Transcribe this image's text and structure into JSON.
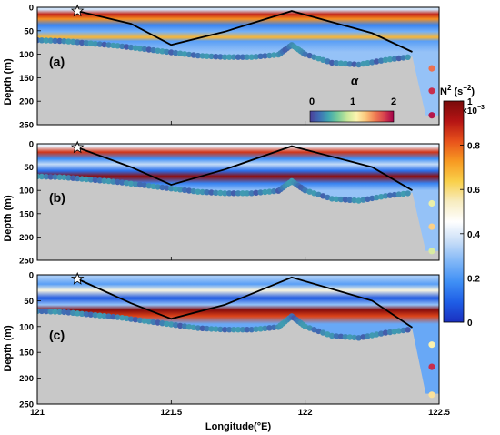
{
  "colors": {
    "seabed": "#c8c8c8",
    "water_cmap": [
      "#1a2fbf",
      "#1f5ee6",
      "#3f8ff5",
      "#7fb6f7",
      "#c7ddf7",
      "#ffffff",
      "#f7ecc0",
      "#f9d04a",
      "#f79a22",
      "#e8521b",
      "#b51414",
      "#7a0b0b"
    ],
    "alpha_cmap": [
      "#4b3f99",
      "#3f6fb5",
      "#40a7b0",
      "#79cc9a",
      "#c9e89a",
      "#fcf4b0",
      "#fbc57a",
      "#f07d52",
      "#d6404e",
      "#a2004a"
    ]
  },
  "colorbar": {
    "title_base": "N",
    "title_sup": "2",
    "title_unit_open": " (s",
    "title_unit_sup": "−2",
    "title_unit_close": ")",
    "scale_base": "×10",
    "scale_exp": "−3",
    "ticks": [
      "0",
      "0.2",
      "0.4",
      "0.6",
      "0.8",
      "1"
    ]
  },
  "alpha_bar": {
    "symbol": "α",
    "ticks": [
      "0",
      "1",
      "2"
    ]
  },
  "xaxis": {
    "label": "Longitude(°E)",
    "ticks": [
      "121",
      "121.5",
      "122",
      "122.5"
    ]
  },
  "yaxis": {
    "label": "Depth (m)",
    "ticks": [
      "0",
      "50",
      "100",
      "150",
      "200",
      "250"
    ]
  },
  "chart_data": [
    {
      "type": "heatmap",
      "panel_label": "(a)",
      "xlim": [
        121,
        122.5
      ],
      "ylim": [
        250,
        0
      ],
      "clim": [
        0,
        1
      ],
      "layers": [
        {
          "depth": 5,
          "value": 0.38
        },
        {
          "depth": 15,
          "value": 0.88
        },
        {
          "depth": 25,
          "value": 0.74
        },
        {
          "depth": 38,
          "value": 0.16
        },
        {
          "depth": 52,
          "value": 0.26
        },
        {
          "depth": 64,
          "value": 0.68
        },
        {
          "depth": 72,
          "value": 0.22
        },
        {
          "depth": 95,
          "value": 0.3
        }
      ],
      "seabed": {
        "x": [
          121,
          121.1,
          121.2,
          121.3,
          121.4,
          121.5,
          121.6,
          121.7,
          121.8,
          121.9,
          121.95,
          122.0,
          122.1,
          122.2,
          122.3,
          122.4,
          122.45
        ],
        "y": [
          70,
          72,
          77,
          82,
          89,
          96,
          103,
          106,
          106,
          101,
          80,
          100,
          118,
          122,
          112,
          105,
          230
        ]
      },
      "track": {
        "x": [
          121.15,
          121.35,
          121.5,
          121.7,
          121.95,
          122.25,
          122.4
        ],
        "y": [
          8,
          35,
          80,
          52,
          8,
          55,
          95
        ]
      },
      "station": {
        "lon": 121.15,
        "depth": 8
      },
      "edge_alpha": [
        {
          "depth": 130,
          "alpha": 2
        },
        {
          "depth": 178,
          "alpha": 2.3
        },
        {
          "depth": 230,
          "alpha": 2.4
        }
      ]
    },
    {
      "type": "heatmap",
      "panel_label": "(b)",
      "xlim": [
        121,
        122.5
      ],
      "ylim": [
        250,
        0
      ],
      "clim": [
        0,
        1
      ],
      "layers": [
        {
          "depth": 5,
          "value": 0.42
        },
        {
          "depth": 18,
          "value": 0.86
        },
        {
          "depth": 32,
          "value": 0.18
        },
        {
          "depth": 44,
          "value": 0.36
        },
        {
          "depth": 58,
          "value": 0.12
        },
        {
          "depth": 70,
          "value": 0.97
        },
        {
          "depth": 85,
          "value": 0.16
        },
        {
          "depth": 100,
          "value": 0.3
        }
      ],
      "seabed": {
        "x": [
          121,
          121.1,
          121.2,
          121.3,
          121.4,
          121.5,
          121.6,
          121.7,
          121.8,
          121.9,
          121.95,
          122.0,
          122.1,
          122.2,
          122.3,
          122.4,
          122.45
        ],
        "y": [
          70,
          72,
          77,
          82,
          89,
          96,
          103,
          106,
          106,
          101,
          80,
          100,
          118,
          122,
          112,
          105,
          230
        ]
      },
      "track": {
        "x": [
          121.15,
          121.35,
          121.5,
          121.7,
          121.95,
          122.25,
          122.4
        ],
        "y": [
          8,
          50,
          88,
          55,
          5,
          50,
          100
        ]
      },
      "station": {
        "lon": 121.15,
        "depth": 8
      },
      "edge_alpha": [
        {
          "depth": 128,
          "alpha": 1.3
        },
        {
          "depth": 178,
          "alpha": 1.6
        },
        {
          "depth": 230,
          "alpha": 1.2
        }
      ]
    },
    {
      "type": "heatmap",
      "panel_label": "(c)",
      "xlim": [
        121,
        122.5
      ],
      "ylim": [
        250,
        0
      ],
      "clim": [
        0,
        1
      ],
      "layers": [
        {
          "depth": 5,
          "value": 0.32
        },
        {
          "depth": 18,
          "value": 0.22
        },
        {
          "depth": 30,
          "value": 0.5
        },
        {
          "depth": 45,
          "value": 0.08
        },
        {
          "depth": 58,
          "value": 0.3
        },
        {
          "depth": 68,
          "value": 0.98
        },
        {
          "depth": 80,
          "value": 0.84
        },
        {
          "depth": 95,
          "value": 0.24
        }
      ],
      "seabed": {
        "x": [
          121,
          121.1,
          121.2,
          121.3,
          121.4,
          121.5,
          121.6,
          121.7,
          121.8,
          121.9,
          121.95,
          122.0,
          122.1,
          122.2,
          122.3,
          122.4,
          122.45
        ],
        "y": [
          70,
          72,
          77,
          82,
          89,
          96,
          103,
          106,
          106,
          101,
          80,
          100,
          118,
          122,
          112,
          105,
          230
        ]
      },
      "track": {
        "x": [
          121.15,
          121.35,
          121.5,
          121.7,
          121.95,
          122.25,
          122.4
        ],
        "y": [
          8,
          55,
          85,
          58,
          5,
          50,
          102
        ]
      },
      "station": {
        "lon": 121.15,
        "depth": 8
      },
      "edge_alpha": [
        {
          "depth": 135,
          "alpha": 1.4
        },
        {
          "depth": 178,
          "alpha": 2.3
        },
        {
          "depth": 232,
          "alpha": 1.5
        }
      ]
    }
  ]
}
